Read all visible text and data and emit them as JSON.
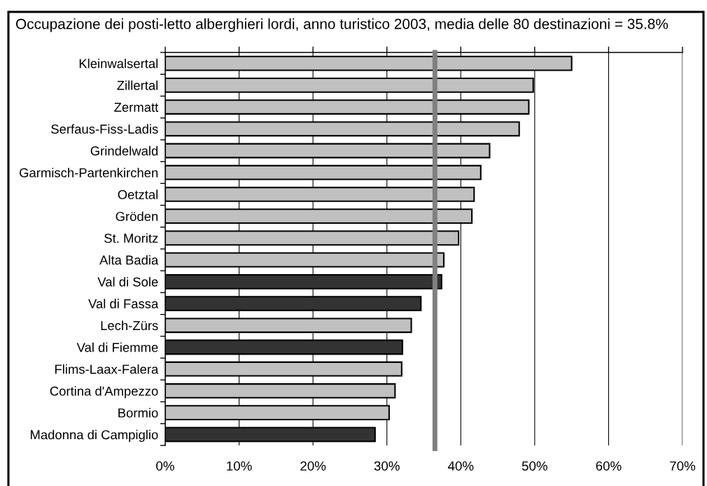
{
  "chart_data": {
    "type": "bar",
    "orientation": "horizontal",
    "title": "Occupazione dei posti-letto alberghieri lordi, anno turistico 2003, media delle 80 destinazioni = 35.8%",
    "categories": [
      "Kleinwalsertal",
      "Zillertal",
      "Zermatt",
      "Serfaus-Fiss-Ladis",
      "Grindelwald",
      "Garmisch-Partenkirchen",
      "Oetztal",
      "Gröden",
      "St. Moritz",
      "Alta Badia",
      "Val di Sole",
      "Val di Fassa",
      "Lech-Zürs",
      "Val di Fiemme",
      "Flims-Laax-Falera",
      "Cortina d'Ampezzo",
      "Bormio",
      "Madonna di Campiglio"
    ],
    "values": [
      55.0,
      49.8,
      49.2,
      47.9,
      43.9,
      42.7,
      41.8,
      41.5,
      39.7,
      37.7,
      37.4,
      34.6,
      33.3,
      32.1,
      32.0,
      31.1,
      30.3,
      28.4
    ],
    "colors": [
      "#c0c0c0",
      "#c0c0c0",
      "#c0c0c0",
      "#c0c0c0",
      "#c0c0c0",
      "#c0c0c0",
      "#c0c0c0",
      "#c0c0c0",
      "#c0c0c0",
      "#c0c0c0",
      "#333333",
      "#333333",
      "#c0c0c0",
      "#333333",
      "#c0c0c0",
      "#c0c0c0",
      "#c0c0c0",
      "#333333"
    ],
    "xlim": [
      0,
      70
    ],
    "xticks": [
      {
        "value": 0,
        "label": "0%"
      },
      {
        "value": 10,
        "label": "10%"
      },
      {
        "value": 20,
        "label": "20%"
      },
      {
        "value": 30,
        "label": "30%"
      },
      {
        "value": 40,
        "label": "40%"
      },
      {
        "value": 50,
        "label": "50%"
      },
      {
        "value": 60,
        "label": "60%"
      },
      {
        "value": 70,
        "label": "70%"
      }
    ],
    "grid": "x",
    "ref_lines": [
      {
        "axis": "x",
        "value": 36.5,
        "color": "#808080"
      }
    ]
  }
}
